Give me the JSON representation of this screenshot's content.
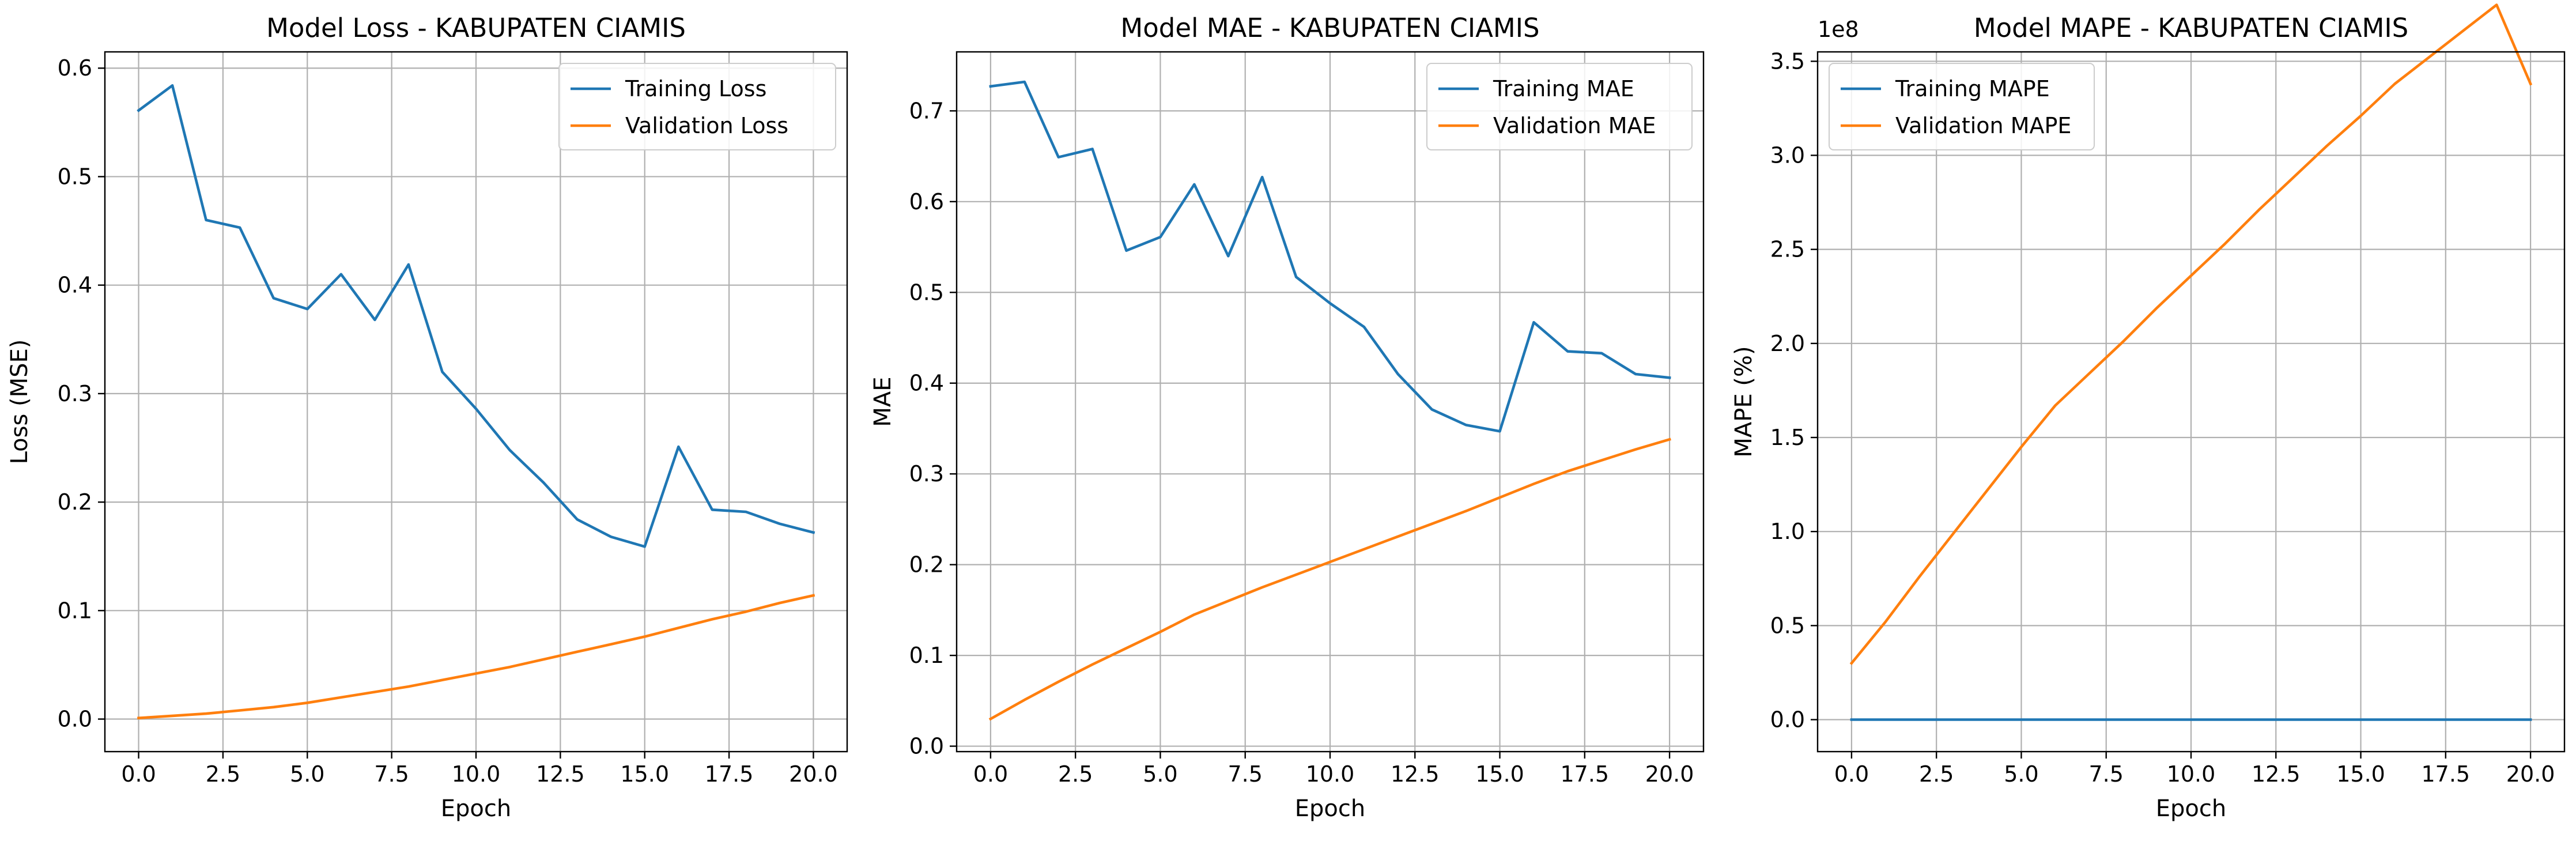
{
  "chart_data": [
    {
      "type": "line",
      "title": "Model Loss - KABUPATEN CIAMIS",
      "xlabel": "Epoch",
      "ylabel": "Loss (MSE)",
      "xlim": [
        -1.0,
        21.0
      ],
      "ylim": [
        -0.03,
        0.615
      ],
      "xticks": [
        0.0,
        2.5,
        5.0,
        7.5,
        10.0,
        12.5,
        15.0,
        17.5,
        20.0
      ],
      "xtick_labels": [
        "0.0",
        "2.5",
        "5.0",
        "7.5",
        "10.0",
        "12.5",
        "15.0",
        "17.5",
        "20.0"
      ],
      "yticks": [
        0.0,
        0.1,
        0.2,
        0.3,
        0.4,
        0.5,
        0.6
      ],
      "ytick_labels": [
        "0.0",
        "0.1",
        "0.2",
        "0.3",
        "0.4",
        "0.5",
        "0.6"
      ],
      "offset_text": "",
      "grid": true,
      "legend_position": "top-right",
      "x": [
        0,
        1,
        2,
        3,
        4,
        5,
        6,
        7,
        8,
        9,
        10,
        11,
        12,
        13,
        14,
        15,
        16,
        17,
        18,
        19,
        20
      ],
      "series": [
        {
          "name": "Training Loss",
          "color": "#1f77b4",
          "values": [
            0.561,
            0.584,
            0.46,
            0.453,
            0.388,
            0.378,
            0.41,
            0.368,
            0.419,
            0.32,
            0.286,
            0.248,
            0.218,
            0.184,
            0.168,
            0.159,
            0.251,
            0.193,
            0.191,
            0.18,
            0.172
          ]
        },
        {
          "name": "Validation Loss",
          "color": "#ff7f0e",
          "values": [
            0.001,
            0.003,
            0.005,
            0.008,
            0.011,
            0.015,
            0.02,
            0.025,
            0.03,
            0.036,
            0.042,
            0.048,
            0.055,
            0.062,
            0.069,
            0.076,
            0.084,
            0.092,
            0.099,
            0.107,
            0.114
          ]
        }
      ]
    },
    {
      "type": "line",
      "title": "Model MAE - KABUPATEN CIAMIS",
      "xlabel": "Epoch",
      "ylabel": "MAE",
      "xlim": [
        -1.0,
        21.0
      ],
      "ylim": [
        -0.006,
        0.765
      ],
      "xticks": [
        0.0,
        2.5,
        5.0,
        7.5,
        10.0,
        12.5,
        15.0,
        17.5,
        20.0
      ],
      "xtick_labels": [
        "0.0",
        "2.5",
        "5.0",
        "7.5",
        "10.0",
        "12.5",
        "15.0",
        "17.5",
        "20.0"
      ],
      "yticks": [
        0.0,
        0.1,
        0.2,
        0.3,
        0.4,
        0.5,
        0.6,
        0.7
      ],
      "ytick_labels": [
        "0.0",
        "0.1",
        "0.2",
        "0.3",
        "0.4",
        "0.5",
        "0.6",
        "0.7"
      ],
      "offset_text": "",
      "grid": true,
      "legend_position": "top-right",
      "x": [
        0,
        1,
        2,
        3,
        4,
        5,
        6,
        7,
        8,
        9,
        10,
        11,
        12,
        13,
        14,
        15,
        16,
        17,
        18,
        19,
        20
      ],
      "series": [
        {
          "name": "Training MAE",
          "color": "#1f77b4",
          "values": [
            0.727,
            0.732,
            0.649,
            0.658,
            0.546,
            0.561,
            0.619,
            0.54,
            0.627,
            0.517,
            0.488,
            0.462,
            0.41,
            0.371,
            0.354,
            0.347,
            0.467,
            0.435,
            0.433,
            0.41,
            0.406
          ]
        },
        {
          "name": "Validation MAE",
          "color": "#ff7f0e",
          "values": [
            0.03,
            0.051,
            0.071,
            0.09,
            0.108,
            0.126,
            0.145,
            0.16,
            0.175,
            0.189,
            0.203,
            0.217,
            0.231,
            0.245,
            0.259,
            0.274,
            0.289,
            0.303,
            0.315,
            0.327,
            0.338
          ]
        }
      ]
    },
    {
      "type": "line",
      "title": "Model MAPE - KABUPATEN CIAMIS",
      "xlabel": "Epoch",
      "ylabel": "MAPE (%)",
      "xlim": [
        -1.0,
        21.0
      ],
      "ylim": [
        -0.17,
        3.55
      ],
      "xticks": [
        0.0,
        2.5,
        5.0,
        7.5,
        10.0,
        12.5,
        15.0,
        17.5,
        20.0
      ],
      "xtick_labels": [
        "0.0",
        "2.5",
        "5.0",
        "7.5",
        "10.0",
        "12.5",
        "15.0",
        "17.5",
        "20.0"
      ],
      "yticks": [
        0.0,
        0.5,
        1.0,
        1.5,
        2.0,
        2.5,
        3.0,
        3.5
      ],
      "ytick_labels": [
        "0.0",
        "0.5",
        "1.0",
        "1.5",
        "2.0",
        "2.5",
        "3.0",
        "3.5"
      ],
      "offset_text": "1e8",
      "grid": true,
      "legend_position": "top-left",
      "x": [
        0,
        1,
        2,
        3,
        4,
        5,
        6,
        7,
        8,
        9,
        10,
        11,
        12,
        13,
        14,
        15,
        16,
        17,
        18,
        19,
        20
      ],
      "series": [
        {
          "name": "Training MAPE",
          "color": "#1f77b4",
          "values": [
            0,
            0,
            0,
            0,
            0,
            0,
            0,
            0,
            0,
            0,
            0,
            0,
            0,
            0,
            0,
            0,
            0,
            0,
            0,
            0,
            0
          ]
        },
        {
          "name": "Validation MAPE",
          "color": "#ff7f0e",
          "values": [
            0.3,
            0.52,
            0.76,
            0.99,
            1.22,
            1.45,
            1.67,
            1.84,
            2.01,
            2.19,
            2.36,
            2.53,
            2.71,
            2.88,
            3.05,
            3.21,
            3.38,
            3.52,
            3.66,
            3.8,
            3.38
          ]
        }
      ]
    }
  ]
}
